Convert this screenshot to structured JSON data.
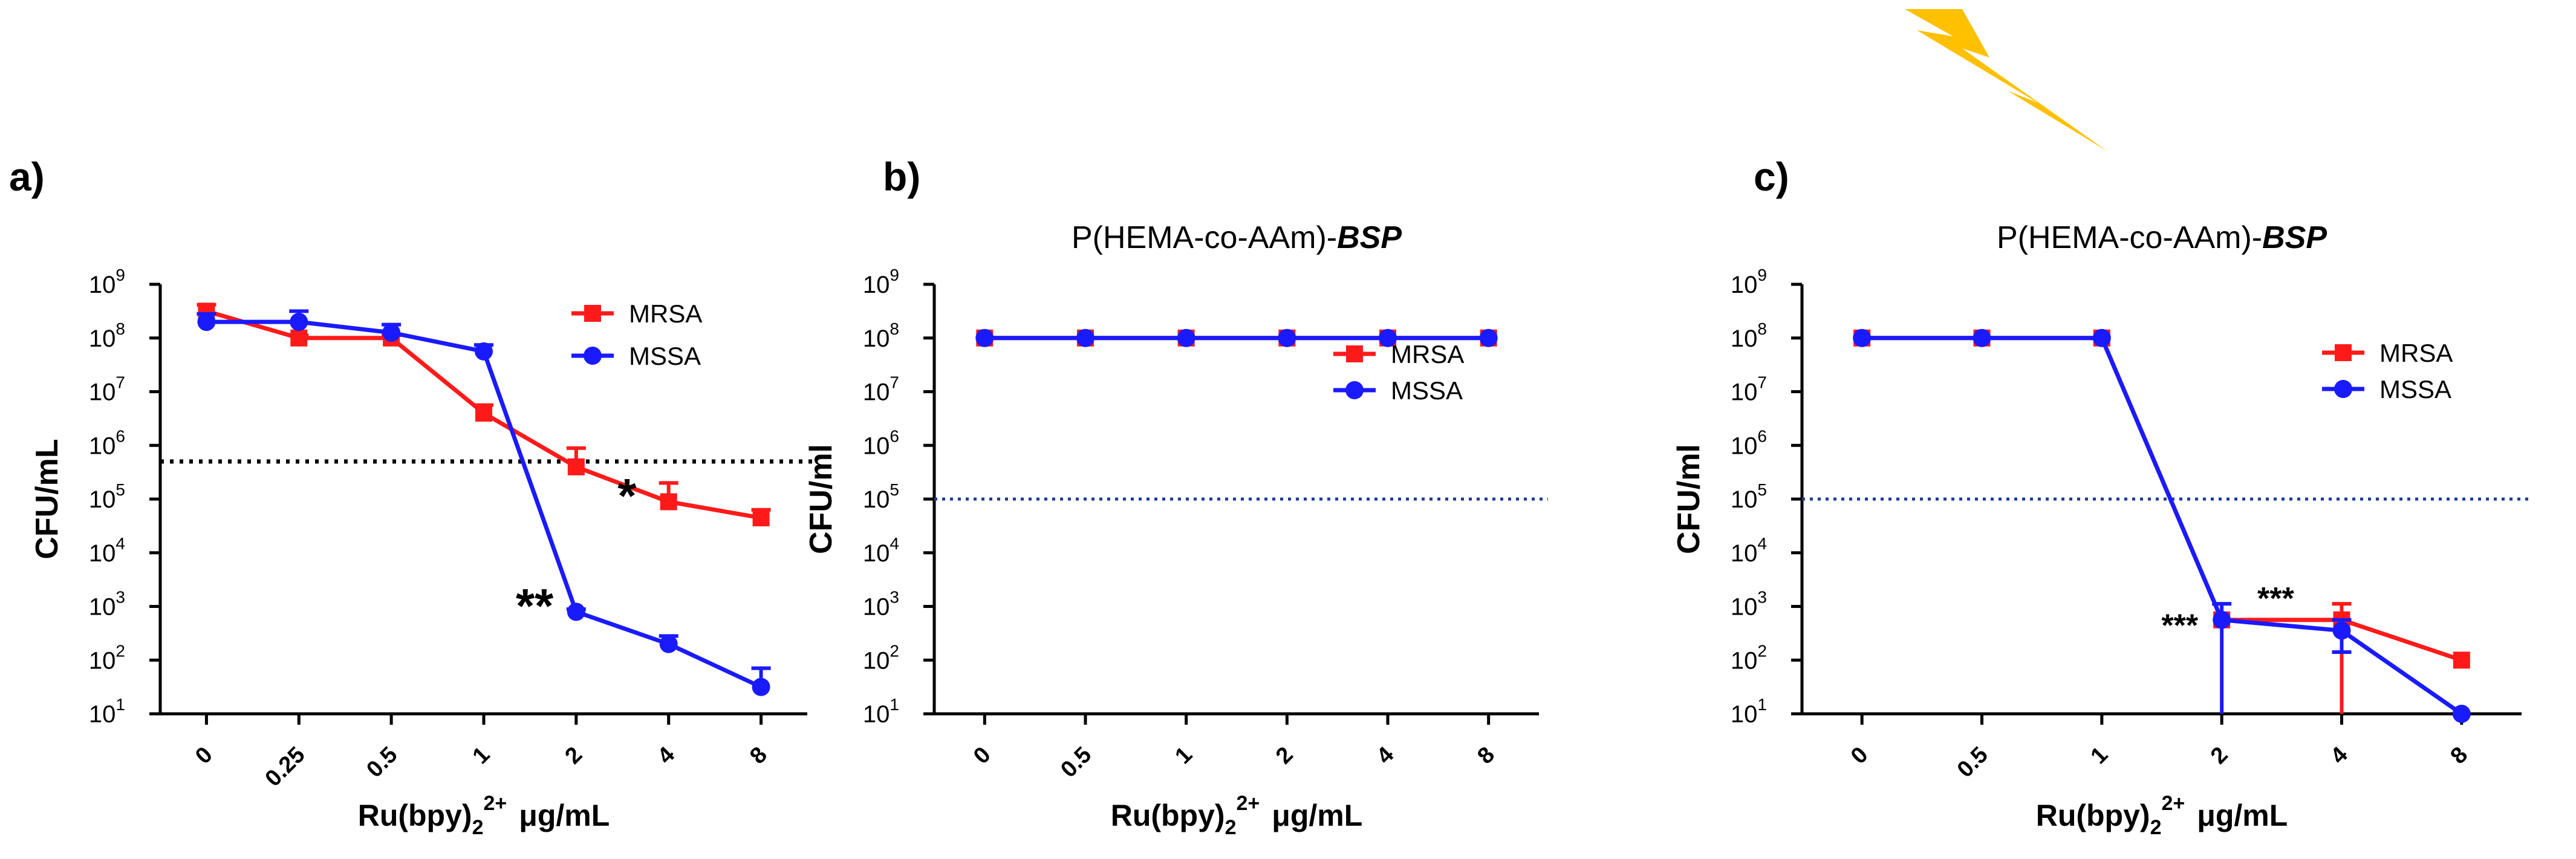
{
  "chart_data": [
    {
      "type": "line",
      "panel_label": "a)",
      "title": "",
      "xlabel": "Ru(bpy)",
      "xlabel_sub": "2",
      "xlabel_sup": "2+",
      "xlabel_unit": "μg/mL",
      "ylabel": "CFU/mL",
      "y_scale": "log",
      "ylim": [
        1,
        9
      ],
      "y_ticks": [
        {
          "base": "10",
          "exp": "1"
        },
        {
          "base": "10",
          "exp": "2"
        },
        {
          "base": "10",
          "exp": "3"
        },
        {
          "base": "10",
          "exp": "4"
        },
        {
          "base": "10",
          "exp": "5"
        },
        {
          "base": "10",
          "exp": "6"
        },
        {
          "base": "10",
          "exp": "7"
        },
        {
          "base": "10",
          "exp": "8"
        },
        {
          "base": "10",
          "exp": "9"
        }
      ],
      "categories": [
        "0",
        "0.25",
        "0.5",
        "1",
        "2",
        "4",
        "8"
      ],
      "x_tick_rotated": true,
      "threshold_log10": 5.7,
      "threshold_style": "black",
      "legend_position": "upper-right",
      "series": [
        {
          "name": "MRSA",
          "color": "#ff1a1a",
          "marker": "square",
          "values": [
            8.5,
            8.0,
            8.0,
            6.6,
            5.6,
            4.95,
            4.65
          ],
          "err_up": [
            0.12,
            0.05,
            0.05,
            0.15,
            0.35,
            0.35,
            0.15
          ]
        },
        {
          "name": "MSSA",
          "color": "#1a1aff",
          "marker": "circle",
          "values": [
            8.3,
            8.3,
            8.1,
            7.75,
            2.9,
            2.3,
            1.5
          ],
          "err_up": [
            0.15,
            0.2,
            0.15,
            0.12,
            0.05,
            0.15,
            0.35
          ]
        }
      ],
      "annotations": [
        {
          "text": "*",
          "x": 4.55,
          "y": 4.75
        },
        {
          "text": "**",
          "x": 3.55,
          "y": 2.7
        }
      ]
    },
    {
      "type": "line",
      "panel_label": "b)",
      "title": "P(HEMA-co-AAm)-",
      "title_suffix": "BSP",
      "xlabel": "Ru(bpy)",
      "xlabel_sub": "2",
      "xlabel_sup": "2+",
      "xlabel_unit": "μg/mL",
      "ylabel": "CFU/ml",
      "y_scale": "log",
      "ylim": [
        1,
        9
      ],
      "y_ticks": [
        {
          "base": "10",
          "exp": "1"
        },
        {
          "base": "10",
          "exp": "2"
        },
        {
          "base": "10",
          "exp": "3"
        },
        {
          "base": "10",
          "exp": "4"
        },
        {
          "base": "10",
          "exp": "5"
        },
        {
          "base": "10",
          "exp": "6"
        },
        {
          "base": "10",
          "exp": "7"
        },
        {
          "base": "10",
          "exp": "8"
        },
        {
          "base": "10",
          "exp": "9"
        }
      ],
      "categories": [
        "0",
        "0.5",
        "1",
        "2",
        "4",
        "8"
      ],
      "x_tick_rotated": true,
      "threshold_log10": 5.0,
      "threshold_style": "navy",
      "legend_position": "right",
      "series": [
        {
          "name": "MRSA",
          "color": "#ff1a1a",
          "marker": "square",
          "values": [
            8,
            8,
            8,
            8,
            8,
            8
          ],
          "err_up": [
            0,
            0,
            0,
            0,
            0,
            0
          ]
        },
        {
          "name": "MSSA",
          "color": "#1a1aff",
          "marker": "circle",
          "values": [
            8,
            8,
            8,
            8,
            8,
            8
          ],
          "err_up": [
            0,
            0,
            0,
            0,
            0,
            0
          ]
        }
      ],
      "annotations": []
    },
    {
      "type": "line",
      "panel_label": "c)",
      "title": "P(HEMA-co-AAm)-",
      "title_suffix": "BSP",
      "xlabel": "Ru(bpy)",
      "xlabel_sub": "2",
      "xlabel_sup": "2+",
      "xlabel_unit": "μg/mL",
      "ylabel": "CFU/ml",
      "y_scale": "log",
      "ylim": [
        1,
        9
      ],
      "y_ticks": [
        {
          "base": "10",
          "exp": "1"
        },
        {
          "base": "10",
          "exp": "2"
        },
        {
          "base": "10",
          "exp": "3"
        },
        {
          "base": "10",
          "exp": "4"
        },
        {
          "base": "10",
          "exp": "5"
        },
        {
          "base": "10",
          "exp": "6"
        },
        {
          "base": "10",
          "exp": "7"
        },
        {
          "base": "10",
          "exp": "8"
        },
        {
          "base": "10",
          "exp": "9"
        }
      ],
      "categories": [
        "0",
        "0.5",
        "1",
        "2",
        "4",
        "8"
      ],
      "x_tick_rotated": true,
      "threshold_log10": 5.0,
      "threshold_style": "navy",
      "legend_position": "right",
      "light_icon": "lightning-bolt-icon",
      "light_color": "#ffc000",
      "series": [
        {
          "name": "MRSA",
          "color": "#ff1a1a",
          "marker": "square",
          "values": [
            8,
            8,
            8,
            2.75,
            2.75,
            2.0
          ],
          "err_up": [
            0,
            0,
            0,
            0,
            0.3,
            0
          ],
          "err_down_to_axis": [
            false,
            false,
            false,
            false,
            true,
            false
          ]
        },
        {
          "name": "MSSA",
          "color": "#1a1aff",
          "marker": "circle",
          "values": [
            8,
            8,
            8,
            2.75,
            2.55,
            1.0
          ],
          "err_up": [
            0,
            0,
            0,
            0.3,
            0.2,
            0
          ],
          "err_down": [
            0,
            0,
            0,
            0,
            0.4,
            0
          ],
          "err_down_to_axis": [
            false,
            false,
            false,
            true,
            false,
            false
          ]
        }
      ],
      "annotations": [
        {
          "text": "***",
          "x": 3.45,
          "y": 2.95
        },
        {
          "text": "***",
          "x": 2.65,
          "y": 2.45
        }
      ]
    }
  ]
}
